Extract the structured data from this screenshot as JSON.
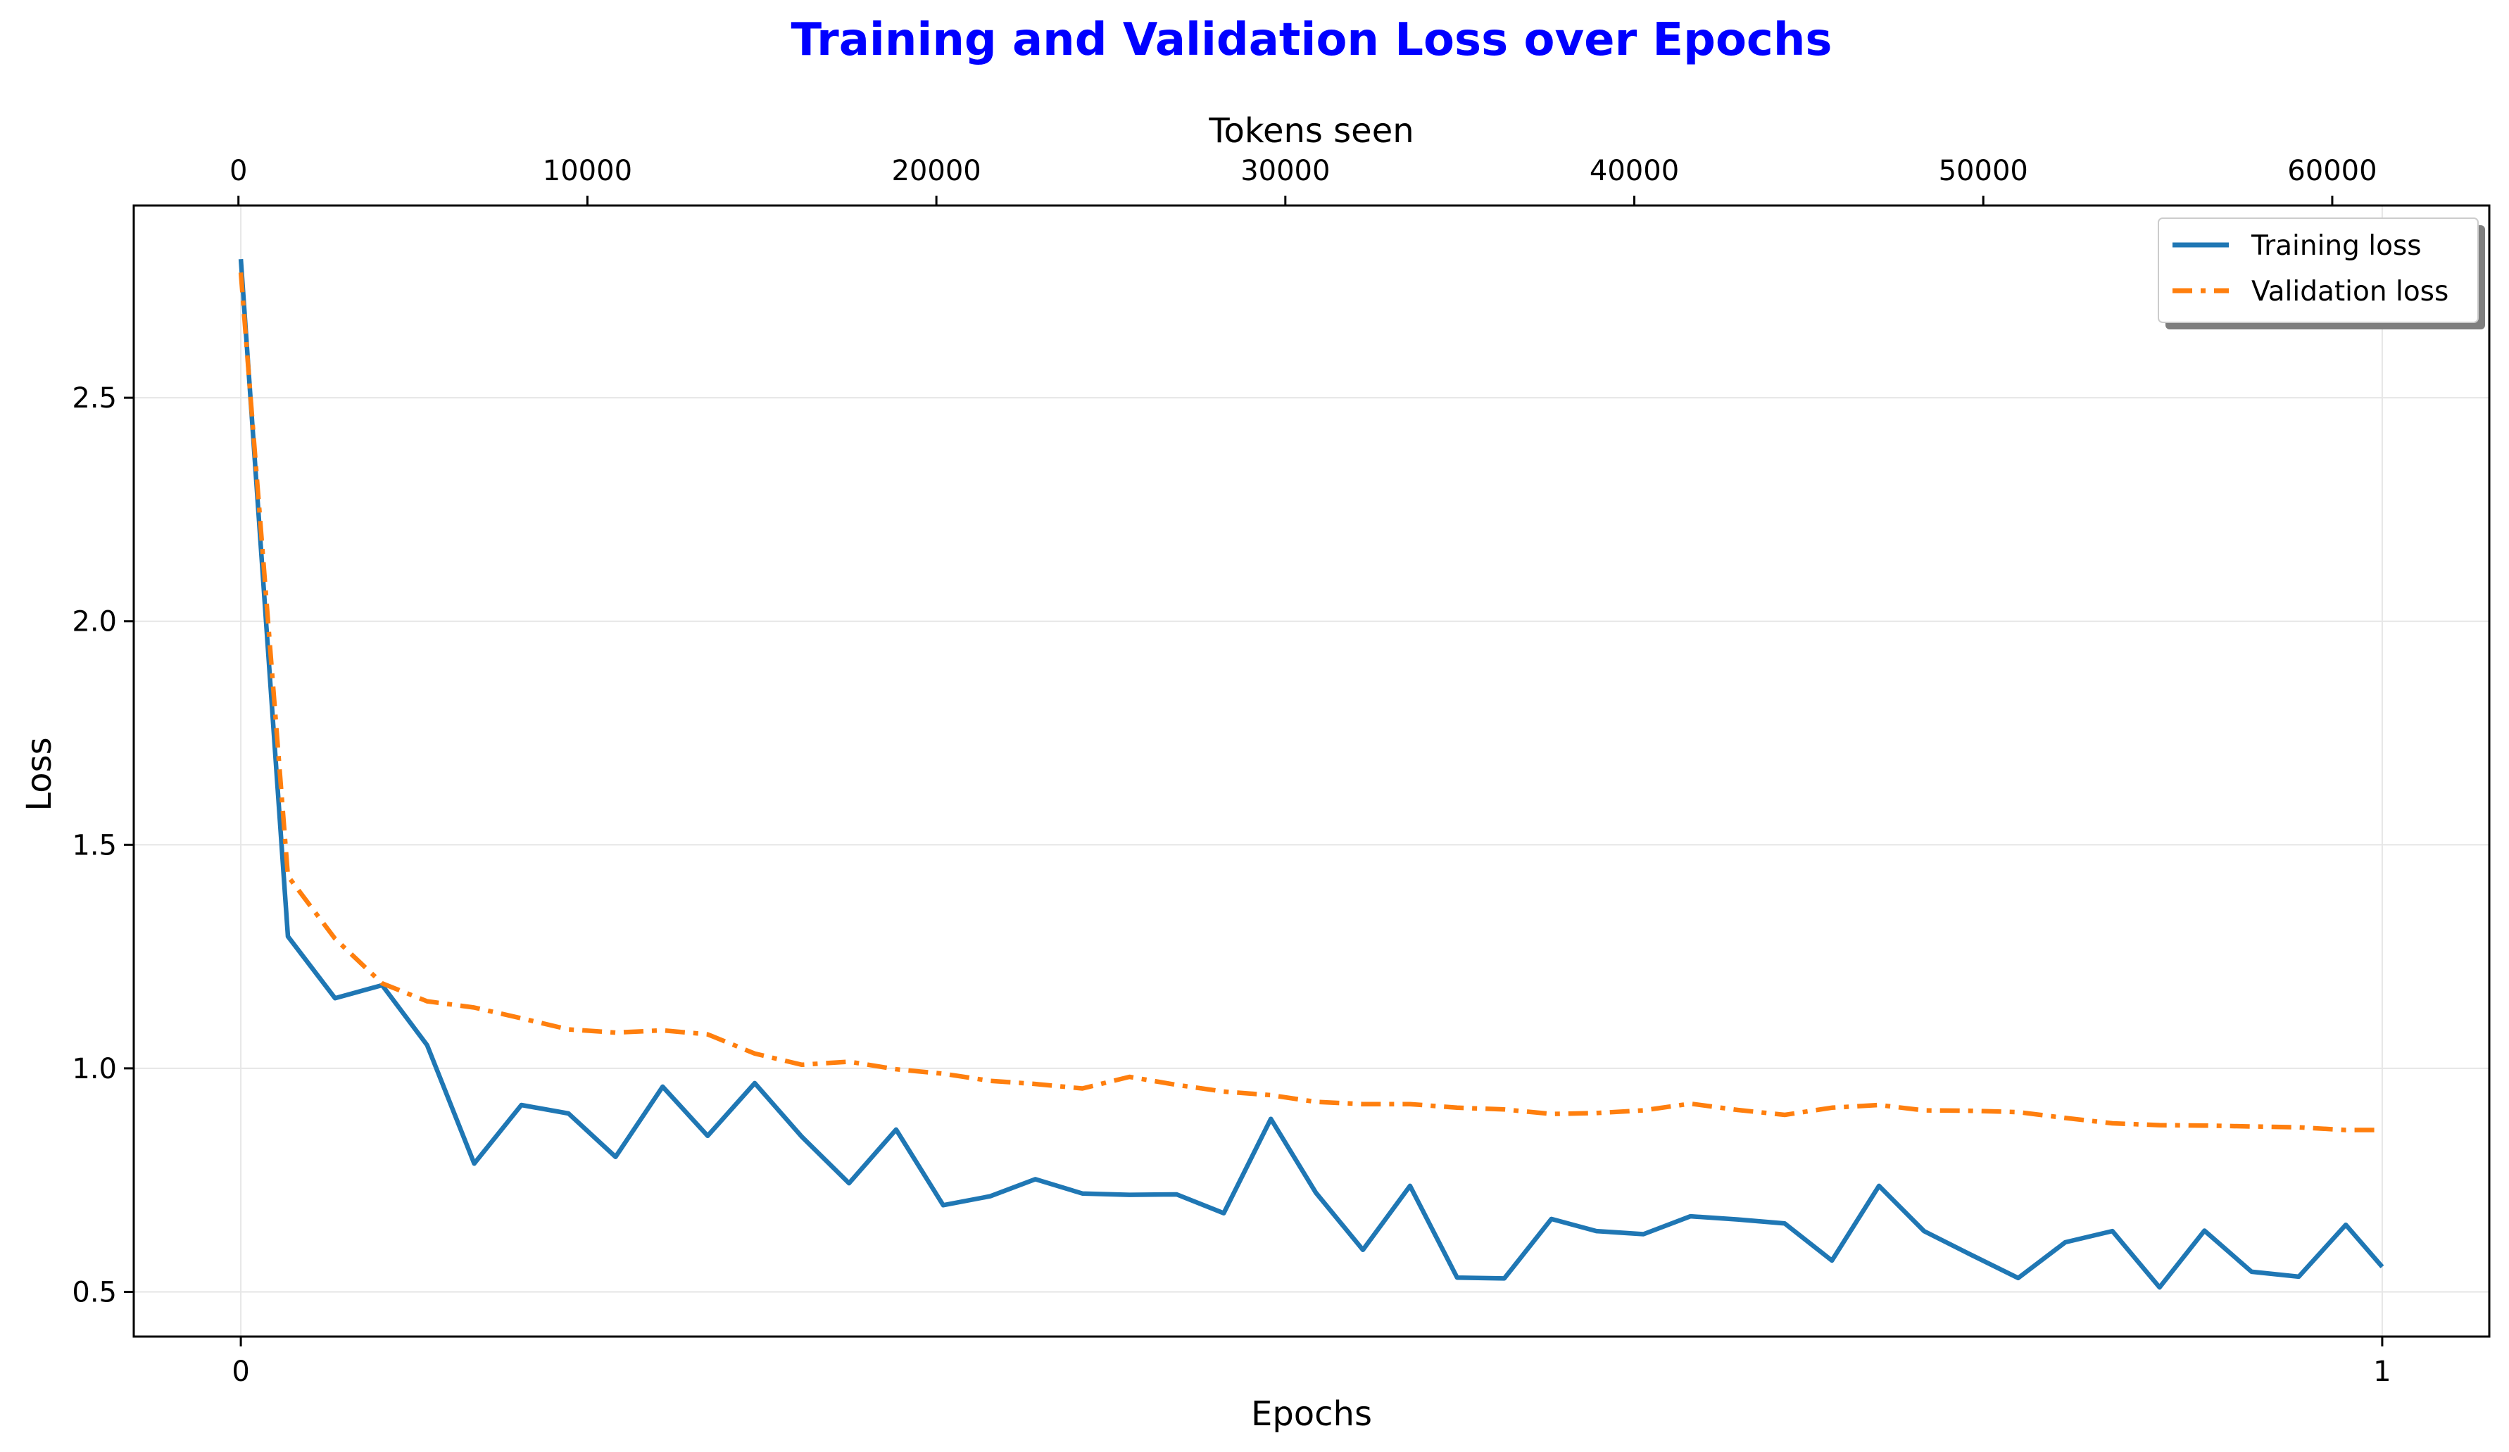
{
  "chart_data": {
    "type": "line",
    "title": "Training and Validation Loss over Epochs",
    "title_color": "#0000ff",
    "xlabel": "Epochs",
    "x2label": "Tokens seen",
    "ylabel": "Loss",
    "x_ticks": [
      0,
      1
    ],
    "x_tick_labels": [
      "0",
      "1"
    ],
    "x2_ticks": [
      0,
      10000,
      20000,
      30000,
      40000,
      50000,
      60000
    ],
    "x2_tick_labels": [
      "0",
      "10000",
      "20000",
      "30000",
      "40000",
      "50000",
      "60000"
    ],
    "y_ticks": [
      0.5,
      1.0,
      1.5,
      2.0,
      2.5
    ],
    "y_tick_labels": [
      "0.5",
      "1.0",
      "1.5",
      "2.0",
      "2.5"
    ],
    "xlim": [
      -0.05,
      1.05
    ],
    "x2lim": [
      -3000,
      64500
    ],
    "ylim": [
      0.4,
      2.93
    ],
    "grid": true,
    "legend_position": "top-right",
    "x": [
      0.0,
      0.022,
      0.044,
      0.066,
      0.087,
      0.109,
      0.131,
      0.153,
      0.175,
      0.197,
      0.218,
      0.24,
      0.262,
      0.284,
      0.306,
      0.328,
      0.35,
      0.371,
      0.393,
      0.415,
      0.437,
      0.459,
      0.481,
      0.502,
      0.524,
      0.546,
      0.568,
      0.59,
      0.612,
      0.633,
      0.655,
      0.677,
      0.699,
      0.721,
      0.743,
      0.765,
      0.786,
      0.808,
      0.83,
      0.852,
      0.874,
      0.896,
      0.917,
      0.939,
      0.961,
      0.983,
      1.0
    ],
    "series": [
      {
        "name": "Training loss",
        "color": "#1f77b4",
        "style": "solid",
        "values": [
          2.81,
          1.295,
          1.157,
          1.186,
          1.052,
          0.787,
          0.918,
          0.899,
          0.802,
          0.959,
          0.849,
          0.967,
          0.847,
          0.743,
          0.863,
          0.694,
          0.714,
          0.752,
          0.72,
          0.717,
          0.718,
          0.676,
          0.887,
          0.722,
          0.594,
          0.737,
          0.532,
          0.53,
          0.663,
          0.636,
          0.629,
          0.669,
          0.662,
          0.653,
          0.57,
          0.737,
          0.636,
          0.583,
          0.531,
          0.611,
          0.636,
          0.51,
          0.637,
          0.545,
          0.534,
          0.65,
          0.556
        ]
      },
      {
        "name": "Validation loss",
        "color": "#ff7f0e",
        "style": "dashdot",
        "values": [
          2.78,
          1.43,
          1.29,
          1.19,
          1.15,
          1.136,
          1.112,
          1.087,
          1.08,
          1.085,
          1.076,
          1.033,
          1.008,
          1.015,
          0.998,
          0.988,
          0.972,
          0.965,
          0.955,
          0.981,
          0.963,
          0.948,
          0.94,
          0.925,
          0.92,
          0.92,
          0.912,
          0.908,
          0.898,
          0.9,
          0.906,
          0.921,
          0.907,
          0.896,
          0.912,
          0.918,
          0.906,
          0.905,
          0.902,
          0.889,
          0.877,
          0.873,
          0.872,
          0.87,
          0.868,
          0.862,
          0.862
        ]
      }
    ]
  }
}
